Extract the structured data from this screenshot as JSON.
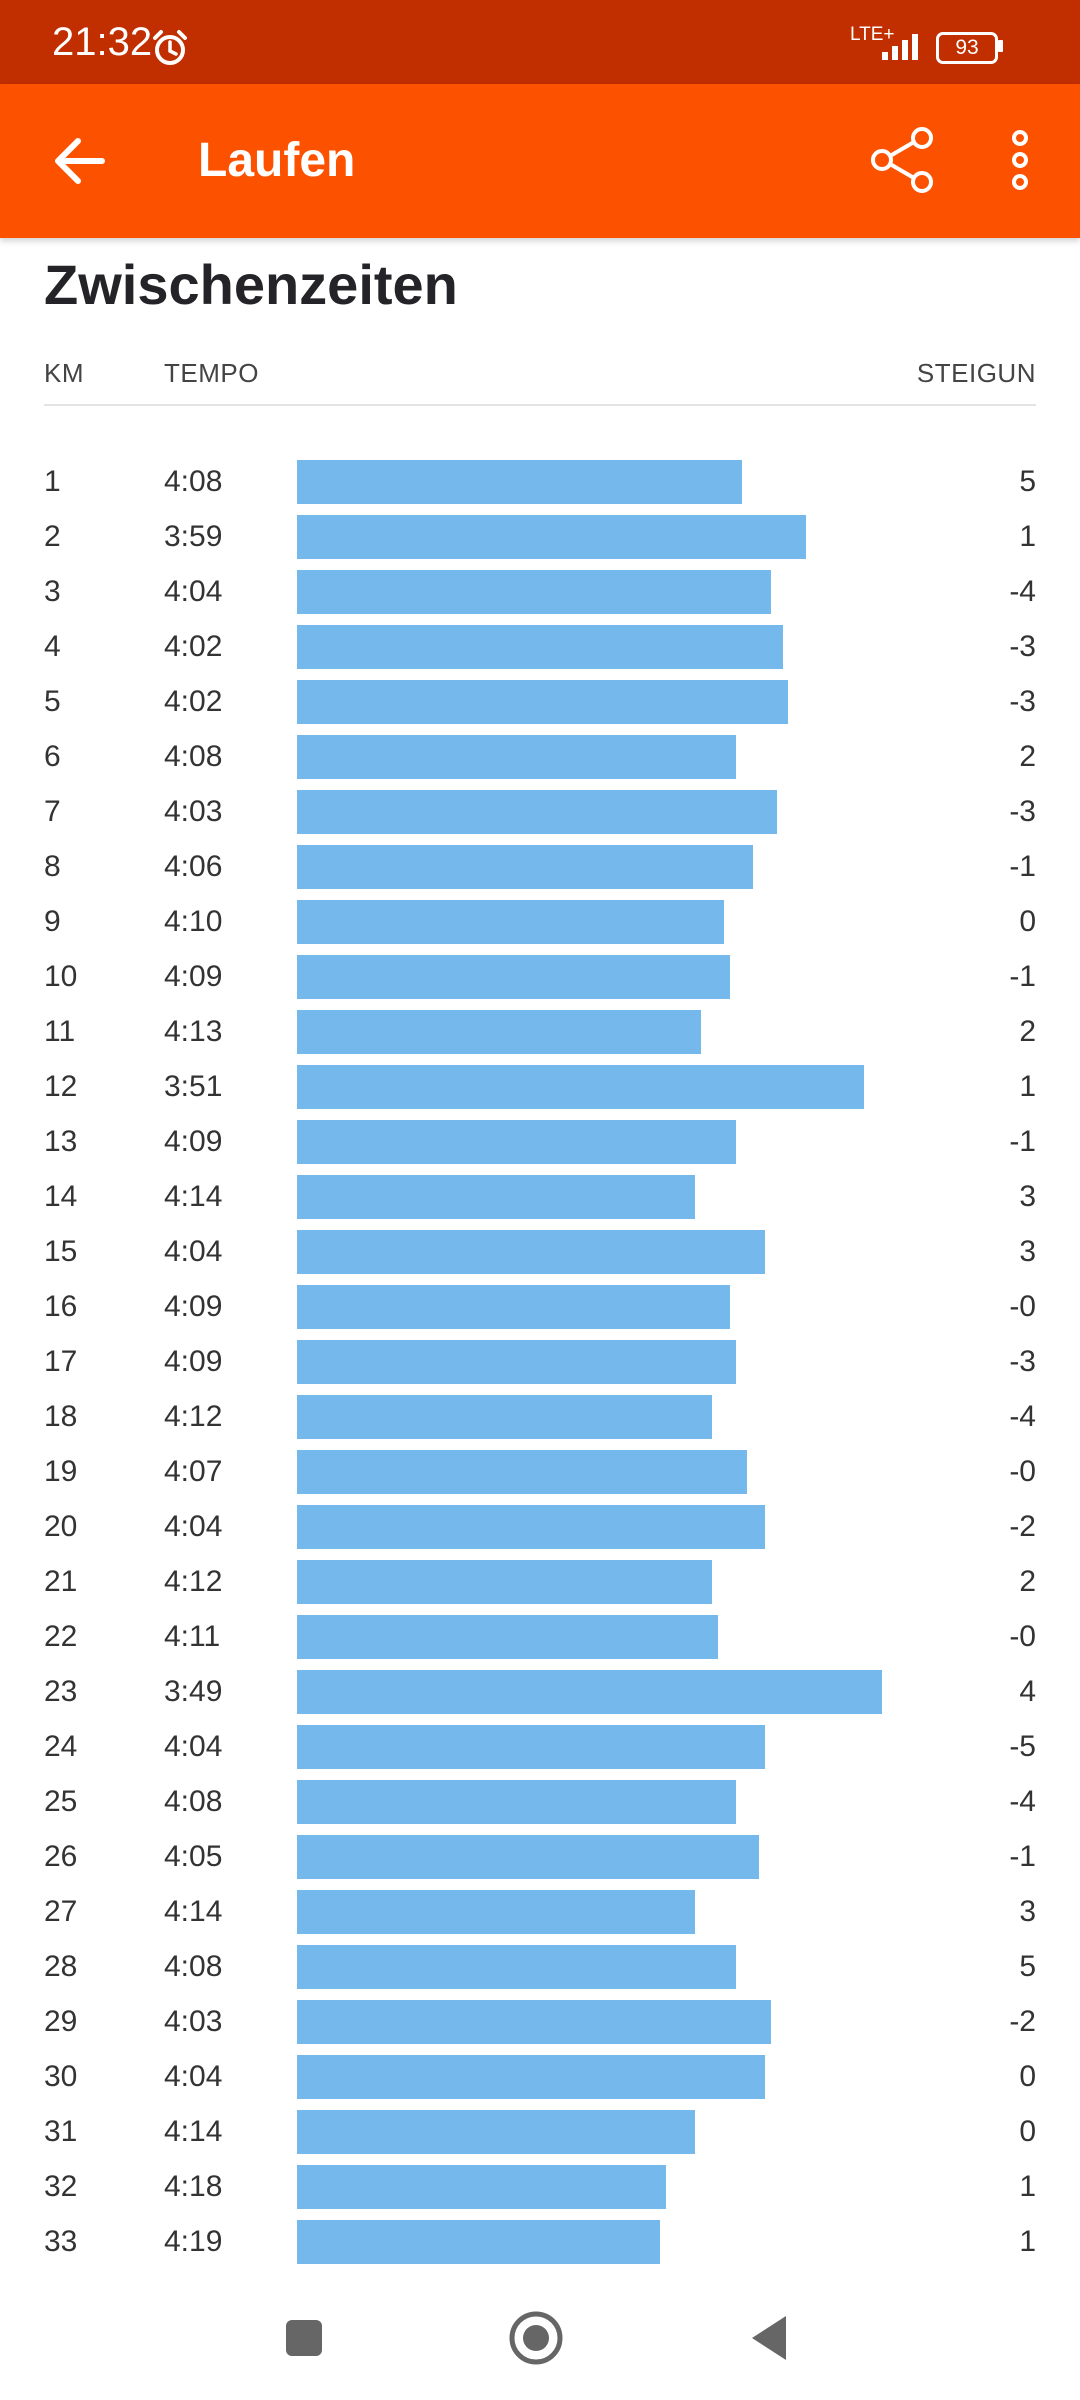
{
  "status_bar": {
    "time": "21:32",
    "network": "LTE+",
    "battery": "93",
    "icons": [
      "alarm-icon",
      "signal-icon",
      "battery-icon"
    ]
  },
  "app_bar": {
    "title": "Laufen",
    "back_icon": "arrow-back-icon",
    "share_icon": "share-icon",
    "more_icon": "more-vert-icon",
    "color": "#fc5200"
  },
  "section": {
    "title": "Zwischenzeiten",
    "col_km": "KM",
    "col_tempo": "TEMPO",
    "col_elev": "STEIGUN"
  },
  "chart_data": {
    "type": "bar",
    "bar_color": "#74b8ec",
    "categories": [
      "1",
      "2",
      "3",
      "4",
      "5",
      "6",
      "7",
      "8",
      "9",
      "10",
      "11",
      "12",
      "13",
      "14",
      "15",
      "16",
      "17",
      "18",
      "19",
      "20",
      "21",
      "22",
      "23",
      "24",
      "25",
      "26",
      "27",
      "28",
      "29",
      "30",
      "31",
      "32",
      "33"
    ],
    "paces": [
      "4:08",
      "3:59",
      "4:04",
      "4:02",
      "4:02",
      "4:08",
      "4:03",
      "4:06",
      "4:10",
      "4:09",
      "4:13",
      "3:51",
      "4:09",
      "4:14",
      "4:04",
      "4:09",
      "4:09",
      "4:12",
      "4:07",
      "4:04",
      "4:12",
      "4:11",
      "3:49",
      "4:04",
      "4:08",
      "4:05",
      "4:14",
      "4:08",
      "4:03",
      "4:04",
      "4:14",
      "4:18",
      "4:19"
    ],
    "pace_bar_fraction": [
      0.76,
      0.87,
      0.81,
      0.83,
      0.84,
      0.75,
      0.82,
      0.78,
      0.73,
      0.74,
      0.69,
      0.97,
      0.75,
      0.68,
      0.8,
      0.74,
      0.75,
      0.71,
      0.77,
      0.8,
      0.71,
      0.72,
      1.0,
      0.8,
      0.75,
      0.79,
      0.68,
      0.75,
      0.81,
      0.8,
      0.68,
      0.63,
      0.62
    ],
    "elevation": [
      "5",
      "1",
      "-4",
      "-3",
      "-3",
      "2",
      "-3",
      "-1",
      "0",
      "-1",
      "2",
      "1",
      "-1",
      "3",
      "3",
      "-0",
      "-3",
      "-4",
      "-0",
      "-2",
      "2",
      "-0",
      "4",
      "-5",
      "-4",
      "-1",
      "3",
      "5",
      "-2",
      "0",
      "0",
      "1",
      "1"
    ]
  },
  "nav_bar": {
    "icons": [
      "recents-icon",
      "home-icon",
      "back-icon"
    ]
  }
}
